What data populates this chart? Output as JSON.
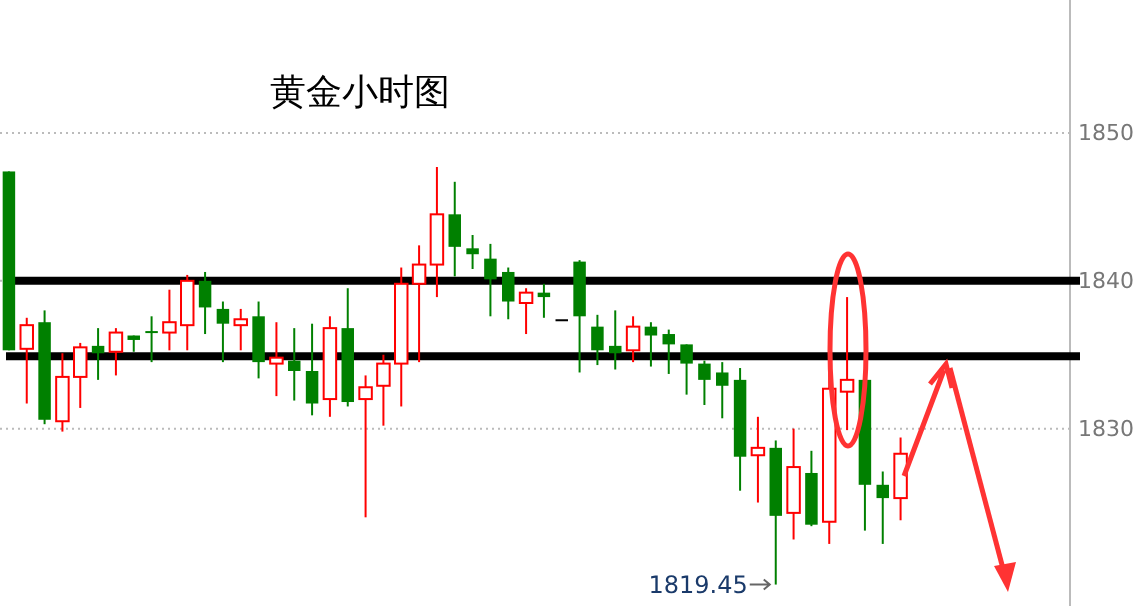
{
  "chart_data": {
    "type": "candlestick",
    "title": "黄金小时图",
    "categories": [
      null,
      null,
      null,
      null,
      null,
      null,
      null,
      null,
      null,
      null,
      null,
      null,
      null,
      null,
      null,
      null,
      null,
      null,
      null,
      null,
      null,
      null,
      null,
      null,
      null,
      null,
      null,
      null,
      null,
      null,
      null,
      null,
      null,
      null,
      null,
      null,
      null,
      null,
      null,
      null,
      null,
      null,
      null,
      null,
      null,
      null,
      null,
      null,
      null,
      null,
      null,
      null,
      null,
      null,
      null,
      null,
      null,
      null,
      null,
      null
    ],
    "ohlc": [
      [
        1847.4,
        1847.4,
        1835.3,
        1835.3
      ],
      [
        1835.4,
        1837.5,
        1831.7,
        1837.0
      ],
      [
        1837.2,
        1838.0,
        1830.3,
        1830.6
      ],
      [
        1830.5,
        1835.1,
        1829.8,
        1833.5
      ],
      [
        1833.5,
        1835.8,
        1831.4,
        1835.5
      ],
      [
        1835.6,
        1836.8,
        1833.3,
        1835.1
      ],
      [
        1835.2,
        1836.8,
        1833.6,
        1836.5
      ],
      [
        1836.3,
        1836.3,
        1835.2,
        1836.0
      ],
      [
        1836.6,
        1837.6,
        1834.5,
        1836.5
      ],
      [
        1836.5,
        1839.4,
        1835.3,
        1837.2
      ],
      [
        1837.0,
        1840.4,
        1835.3,
        1840.0
      ],
      [
        1840.0,
        1840.6,
        1836.4,
        1838.2
      ],
      [
        1838.1,
        1838.6,
        1834.5,
        1837.1
      ],
      [
        1837.0,
        1838.1,
        1835.3,
        1837.4
      ],
      [
        1837.6,
        1838.6,
        1833.4,
        1834.5
      ],
      [
        1834.4,
        1837.2,
        1832.2,
        1834.8
      ],
      [
        1834.6,
        1836.8,
        1831.9,
        1833.9
      ],
      [
        1833.9,
        1837.1,
        1830.9,
        1831.7
      ],
      [
        1832.0,
        1837.6,
        1830.8,
        1836.8
      ],
      [
        1836.8,
        1839.5,
        1831.5,
        1831.8
      ],
      [
        1832.0,
        1833.6,
        1824.0,
        1832.8
      ],
      [
        1832.9,
        1835.0,
        1830.2,
        1834.4
      ],
      [
        1834.4,
        1840.9,
        1831.5,
        1839.8
      ],
      [
        1839.8,
        1842.4,
        1834.5,
        1841.1
      ],
      [
        1841.1,
        1847.7,
        1838.9,
        1844.5
      ],
      [
        1844.5,
        1846.7,
        1840.3,
        1842.3
      ],
      [
        1842.2,
        1843.1,
        1840.8,
        1841.8
      ],
      [
        1841.5,
        1842.5,
        1837.6,
        1840.1
      ],
      [
        1840.6,
        1840.9,
        1837.4,
        1838.6
      ],
      [
        1838.5,
        1839.5,
        1836.4,
        1839.2
      ],
      [
        1839.2,
        1839.8,
        1837.5,
        1838.9
      ],
      [
        1837.4,
        1837.4,
        1837.4,
        1837.4
      ],
      [
        1841.3,
        1841.4,
        1833.8,
        1837.6
      ],
      [
        1836.9,
        1837.7,
        1834.3,
        1835.3
      ],
      [
        1835.6,
        1838.0,
        1834.0,
        1835.1
      ],
      [
        1835.3,
        1837.6,
        1834.5,
        1836.9
      ],
      [
        1836.9,
        1837.2,
        1834.2,
        1836.3
      ],
      [
        1836.4,
        1836.7,
        1833.7,
        1835.7
      ],
      [
        1835.7,
        1835.7,
        1832.3,
        1834.4
      ],
      [
        1834.4,
        1834.6,
        1831.6,
        1833.3
      ],
      [
        1833.8,
        1834.5,
        1830.7,
        1832.9
      ],
      [
        1833.3,
        1834.1,
        1825.8,
        1828.1
      ],
      [
        1828.2,
        1830.8,
        1825.0,
        1828.7
      ],
      [
        1828.7,
        1829.2,
        1819.45,
        1824.1
      ],
      [
        1824.3,
        1830.0,
        1822.5,
        1827.4
      ],
      [
        1827.0,
        1828.5,
        1823.4,
        1823.5
      ],
      [
        1823.7,
        1834.0,
        1822.2,
        1832.7
      ],
      [
        1832.5,
        1838.9,
        1829.9,
        1833.3
      ],
      [
        1833.3,
        1833.3,
        1823.1,
        1826.2
      ],
      [
        1826.2,
        1827.1,
        1822.2,
        1825.3
      ],
      [
        1825.3,
        1829.4,
        1823.8,
        1828.3
      ],
      null,
      null,
      null,
      null,
      null,
      null,
      null,
      null,
      null
    ],
    "colors": [
      "#008000",
      "#ff0000",
      "#008000",
      "#ff0000",
      "#ff0000",
      "#008000",
      "#ff0000",
      "#008000",
      "#008000",
      "#ff0000",
      "#ff0000",
      "#008000",
      "#008000",
      "#ff0000",
      "#008000",
      "#ff0000",
      "#008000",
      "#008000",
      "#ff0000",
      "#008000",
      "#ff0000",
      "#ff0000",
      "#ff0000",
      "#ff0000",
      "#ff0000",
      "#008000",
      "#008000",
      "#008000",
      "#008000",
      "#ff0000",
      "#008000",
      "#000000",
      "#008000",
      "#008000",
      "#008000",
      "#ff0000",
      "#008000",
      "#008000",
      "#008000",
      "#008000",
      "#008000",
      "#008000",
      "#ff0000",
      "#008000",
      "#ff0000",
      "#008000",
      "#ff0000",
      "#ff0000",
      "#008000",
      "#008000",
      "#ff0000",
      null,
      null,
      null,
      null,
      null,
      null,
      null,
      null,
      null
    ],
    "ylim": [
      1818,
      1859
    ],
    "yticks": [
      1830,
      1840,
      1850
    ],
    "grid": "y",
    "tick_labels": "y",
    "ref_lines": [
      {
        "axis": "y",
        "value": 1840,
        "color": "#000000"
      },
      {
        "axis": "y",
        "value": 1834.9,
        "color": "#000000"
      }
    ],
    "annotations": [
      "1819.45"
    ]
  }
}
